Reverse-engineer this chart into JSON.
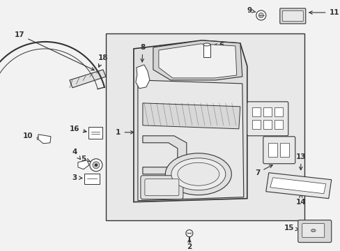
{
  "bg_color": "#f2f2f2",
  "white": "#ffffff",
  "line_color": "#333333",
  "box_bg": "#e8e8e8",
  "fig_width": 4.89,
  "fig_height": 3.6,
  "dpi": 100
}
